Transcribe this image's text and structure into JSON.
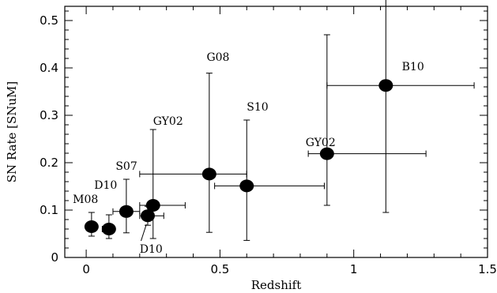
{
  "chart_data": {
    "type": "scatter",
    "xlabel": "Redshift",
    "ylabel": "SN Rate [SNuM]",
    "xlim": [
      -0.08,
      1.5
    ],
    "ylim": [
      0,
      0.53
    ],
    "xticks": [
      0,
      0.5,
      1,
      1.5
    ],
    "xtick_labels": [
      "0",
      "0.5",
      "1",
      "1.5"
    ],
    "yticks": [
      0,
      0.1,
      0.2,
      0.3,
      0.4,
      0.5
    ],
    "ytick_labels": [
      "0",
      "0.1",
      "0.2",
      "0.3",
      "0.4",
      "0.5"
    ],
    "grid": false,
    "points": [
      {
        "label": "M08",
        "x": 0.02,
        "y": 0.065,
        "xerr": [
          0.02,
          0.02
        ],
        "yerr": [
          0.02,
          0.03
        ]
      },
      {
        "label": "",
        "x": 0.085,
        "y": 0.06,
        "xerr": [
          0.025,
          0.02
        ],
        "yerr": [
          0.02,
          0.03
        ]
      },
      {
        "label": "D10",
        "x": 0.15,
        "y": 0.097,
        "xerr": [
          0.05,
          0.05
        ],
        "yerr": [
          0.045,
          0.068
        ]
      },
      {
        "label": "D10",
        "x": 0.23,
        "y": 0.088,
        "xerr": [
          0.03,
          0.06
        ],
        "yerr": [
          0.02,
          0.02
        ]
      },
      {
        "label": "S07",
        "x": 0.25,
        "y": 0.11,
        "xerr": [
          0.05,
          0.12
        ],
        "yerr": [
          0.07,
          0.16
        ]
      },
      {
        "label": "GY02",
        "x": 0.46,
        "y": 0.176,
        "xerr": [
          0.26,
          0.14
        ],
        "yerr": [
          0.123,
          0.213
        ]
      },
      {
        "label": "G08",
        "x": 0.6,
        "y": 0.151,
        "xerr": [
          0.12,
          0.29
        ],
        "yerr": [
          0.115,
          0.139
        ]
      },
      {
        "label": "S10",
        "x": 0.9,
        "y": 0.219,
        "xerr": [
          0.07,
          0.37
        ],
        "yerr": [
          0.109,
          0.251
        ]
      },
      {
        "label": "GY02",
        "x": 1.12,
        "y": 0.363,
        "xerr": [
          0.22,
          0.33
        ],
        "yerr": [
          0.268,
          0.21
        ]
      }
    ],
    "annotations": [
      {
        "text": "M08",
        "x": -0.05,
        "y": 0.115
      },
      {
        "text": "D10",
        "x": 0.03,
        "y": 0.145
      },
      {
        "text": "S07",
        "x": 0.11,
        "y": 0.185
      },
      {
        "text": "GY02",
        "x": 0.25,
        "y": 0.28
      },
      {
        "text": "G08",
        "x": 0.45,
        "y": 0.415
      },
      {
        "text": "S10",
        "x": 0.6,
        "y": 0.31
      },
      {
        "text": "GY02",
        "x": 0.82,
        "y": 0.235
      },
      {
        "text": "B10",
        "x": 1.18,
        "y": 0.395
      },
      {
        "text": "D10",
        "x": 0.2,
        "y": 0.01
      }
    ]
  }
}
